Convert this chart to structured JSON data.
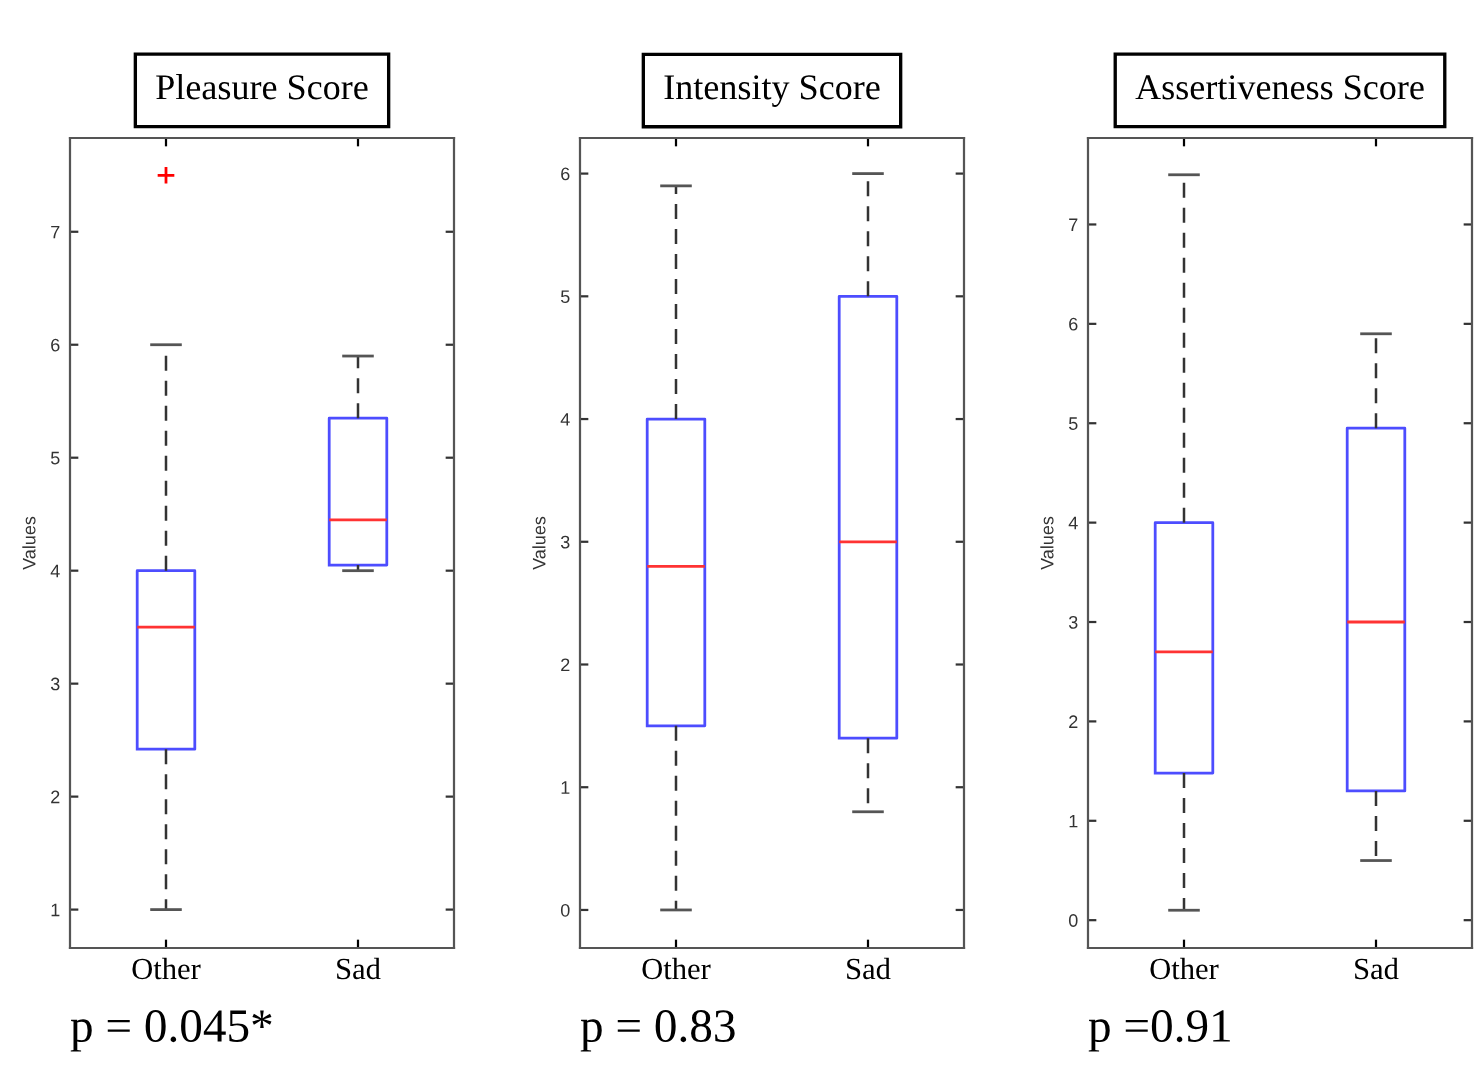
{
  "chart_data": [
    {
      "type": "box",
      "title": "Pleasure Score",
      "ylabel": "Values",
      "categories": [
        "Other",
        "Sad"
      ],
      "ylim": [
        0.66,
        7.83
      ],
      "yticks": [
        1,
        2,
        3,
        4,
        5,
        6,
        7
      ],
      "annotations": [
        "p = 0.045*"
      ],
      "series": [
        {
          "color": "#4d4dff",
          "boxes": [
            {
              "low": 1,
              "q1": 2.42,
              "median": 3.5,
              "q3": 4,
              "high": 6,
              "outliers": [
                7.5
              ]
            },
            {
              "low": 4,
              "q1": 4.05,
              "median": 4.45,
              "q3": 5.35,
              "high": 5.9
            }
          ]
        }
      ]
    },
    {
      "type": "box",
      "title": "Intensity Score",
      "ylabel": "Values",
      "categories": [
        "Other",
        "Sad"
      ],
      "ylim": [
        -0.31,
        6.29
      ],
      "yticks": [
        0,
        1,
        2,
        3,
        4,
        5,
        6
      ],
      "annotations": [
        "p = 0.83"
      ],
      "series": [
        {
          "color": "#4d4dff",
          "boxes": [
            {
              "low": 0,
              "q1": 1.5,
              "median": 2.8,
              "q3": 4,
              "high": 5.9
            },
            {
              "low": 0.8,
              "q1": 1.4,
              "median": 3,
              "q3": 5,
              "high": 6
            }
          ]
        }
      ]
    },
    {
      "type": "box",
      "title": "Assertiveness Score",
      "ylabel": "Values",
      "categories": [
        "Other",
        "Sad"
      ],
      "ylim": [
        -0.28,
        7.87
      ],
      "yticks": [
        0,
        1,
        2,
        3,
        4,
        5,
        6,
        7
      ],
      "annotations": [
        "p =0.91"
      ],
      "series": [
        {
          "color": "#4d4dff",
          "boxes": [
            {
              "low": 0.1,
              "q1": 1.48,
              "median": 2.7,
              "q3": 4,
              "high": 7.5
            },
            {
              "low": 0.6,
              "q1": 1.3,
              "median": 3,
              "q3": 4.95,
              "high": 5.9
            }
          ]
        }
      ]
    }
  ]
}
